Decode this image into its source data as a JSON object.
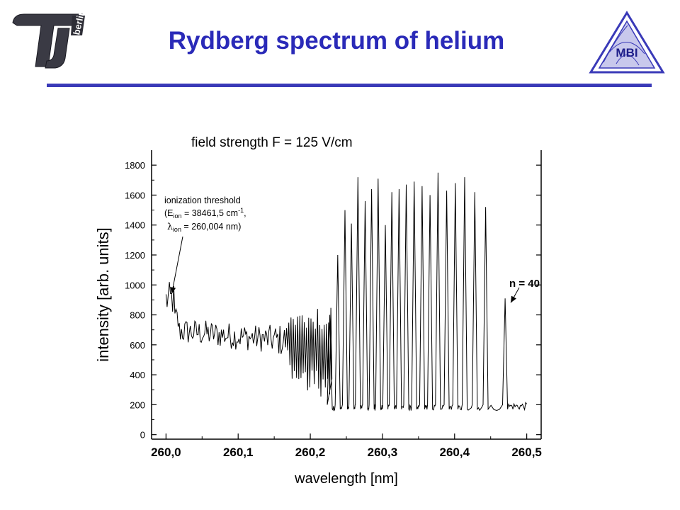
{
  "slide": {
    "title": "Rydberg spectrum of helium",
    "logo_left_text": "berlin",
    "logo_right_text": "MBI",
    "accent_color": "#2a2ab8"
  },
  "chart_data": {
    "type": "line",
    "title": "field strength F = 125 V/cm",
    "xlabel": "wavelength [nm]",
    "ylabel": "intensity [arb. units]",
    "xlim": [
      259.98,
      260.52
    ],
    "ylim": [
      -30,
      1900
    ],
    "x_ticks": [
      "260,0",
      "260,1",
      "260,2",
      "260,3",
      "260,4",
      "260,5"
    ],
    "y_ticks": [
      "0",
      "200",
      "400",
      "600",
      "800",
      "1000",
      "1200",
      "1400",
      "1600",
      "1800"
    ],
    "grid": false,
    "line_color": "#000000",
    "annotations": {
      "threshold_line1": "ionization threshold",
      "threshold_line2_prefix": "(E",
      "threshold_line2_sub": "ion",
      "threshold_line2_mid": " = 38461,5 cm",
      "threshold_line2_sup": "-1",
      "threshold_line2_end": ",",
      "threshold_line3_symbol": "λ",
      "threshold_line3_sub": "ion",
      "threshold_line3_end": " = 260,004 nm)",
      "threshold_arrow_at": [
        260.006,
        960
      ],
      "n_label": "n = 40",
      "n_arrow_at": [
        260.47,
        900
      ]
    },
    "noisy_region": {
      "x_range": [
        260.0,
        260.23
      ],
      "baseline_start": 700,
      "baseline_end": 600
    },
    "series": [
      {
        "peaks": [
          [
            260.227,
            800
          ],
          [
            260.238,
            1200
          ],
          [
            260.248,
            1500
          ],
          [
            260.257,
            1410
          ],
          [
            260.266,
            1720
          ],
          [
            260.276,
            1560
          ],
          [
            260.285,
            1640
          ],
          [
            260.294,
            1710
          ],
          [
            260.304,
            1400
          ],
          [
            260.313,
            1620
          ],
          [
            260.323,
            1640
          ],
          [
            260.333,
            1670
          ],
          [
            260.344,
            1690
          ],
          [
            260.355,
            1660
          ],
          [
            260.366,
            1600
          ],
          [
            260.377,
            1750
          ],
          [
            260.389,
            1630
          ],
          [
            260.401,
            1680
          ],
          [
            260.414,
            1720
          ],
          [
            260.428,
            1620
          ],
          [
            260.443,
            1520
          ],
          [
            260.47,
            910
          ]
        ],
        "baseline": 180,
        "tail_end": 260.5
      }
    ]
  }
}
